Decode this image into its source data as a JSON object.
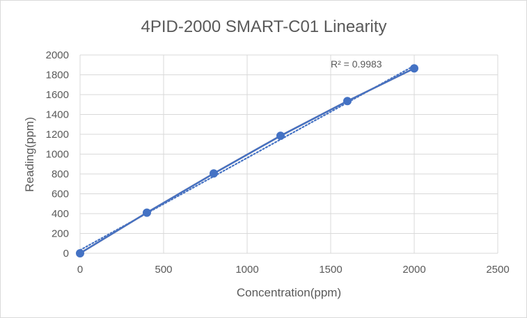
{
  "chart_data": {
    "type": "scatter",
    "title": "4PID-2000 SMART-C01 Linearity",
    "xlabel": "Concentration(ppm)",
    "ylabel": "Reading(ppm)",
    "xlim": [
      0,
      2500
    ],
    "ylim": [
      0,
      2000
    ],
    "x_ticks": [
      0,
      500,
      1000,
      1500,
      2000,
      2500
    ],
    "y_ticks": [
      0,
      200,
      400,
      600,
      800,
      1000,
      1200,
      1400,
      1600,
      1800,
      2000
    ],
    "grid": true,
    "series": [
      {
        "name": "Reading",
        "x": [
          0,
          400,
          800,
          1200,
          1600,
          2000
        ],
        "y": [
          0,
          410,
          805,
          1185,
          1535,
          1865
        ],
        "color": "#4472c4",
        "secondary_line_color": "#ed7d31"
      }
    ],
    "trendline": {
      "type": "linear",
      "style": "dotted",
      "color": "#4472c4",
      "x_range": [
        0,
        2000
      ],
      "y_range": [
        32,
        1892
      ],
      "label": "R² = 0.9983"
    }
  }
}
